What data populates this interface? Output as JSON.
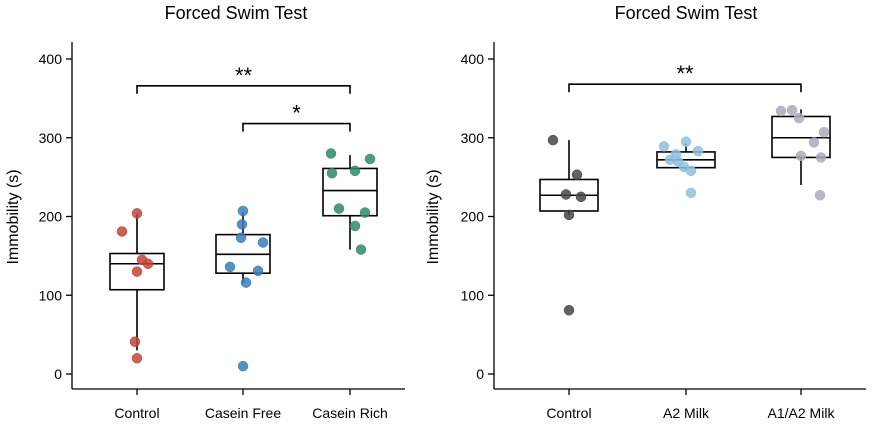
{
  "chart_data": [
    {
      "type": "box",
      "title": "Forced Swim Test",
      "xlabel": "",
      "ylabel": "Immobility (s)",
      "ylim": [
        -20,
        420
      ],
      "yticks": [
        0,
        100,
        200,
        300,
        400
      ],
      "grid": false,
      "categories": [
        "Control",
        "Casein Free",
        "Casein Rich"
      ],
      "colors": [
        "#c0453a",
        "#3a7cb8",
        "#2f8a70"
      ],
      "groups": [
        {
          "name": "Control",
          "q1": 107,
          "median": 140,
          "q3": 153,
          "whisker_low": 30,
          "whisker_high": 203,
          "points": [
            204,
            181,
            145,
            140,
            130,
            41,
            20
          ]
        },
        {
          "name": "Casein Free",
          "q1": 128,
          "median": 152,
          "q3": 177,
          "whisker_low": 115,
          "whisker_high": 205,
          "points": [
            207,
            190,
            173,
            167,
            136,
            131,
            116,
            10
          ]
        },
        {
          "name": "Casein Rich",
          "q1": 201,
          "median": 233,
          "q3": 261,
          "whisker_low": 158,
          "whisker_high": 278,
          "points": [
            280,
            273,
            258,
            255,
            210,
            205,
            188,
            158
          ]
        }
      ],
      "significance": [
        {
          "from": 0,
          "to": 2,
          "y": 366,
          "label": "**"
        },
        {
          "from": 1,
          "to": 2,
          "y": 318,
          "label": "*"
        }
      ]
    },
    {
      "type": "box",
      "title": "Forced Swim Test",
      "xlabel": "",
      "ylabel": "Immobility (s)",
      "ylim": [
        -20,
        420
      ],
      "yticks": [
        0,
        100,
        200,
        300,
        400
      ],
      "grid": false,
      "categories": [
        "Control",
        "A2 Milk",
        "A1/A2 Milk"
      ],
      "colors": [
        "#454545",
        "#8fbfdf",
        "#a9adb6"
      ],
      "groups": [
        {
          "name": "Control",
          "q1": 207,
          "median": 227,
          "q3": 247,
          "whisker_low": 202,
          "whisker_high": 297,
          "points": [
            297,
            253,
            228,
            225,
            202,
            81
          ]
        },
        {
          "name": "A2 Milk",
          "q1": 262,
          "median": 272,
          "q3": 282,
          "whisker_low": 258,
          "whisker_high": 293,
          "points": [
            295,
            289,
            283,
            279,
            272,
            270,
            263,
            258,
            230
          ]
        },
        {
          "name": "A1/A2 Milk",
          "q1": 275,
          "median": 300,
          "q3": 327,
          "whisker_low": 240,
          "whisker_high": 336,
          "points": [
            335,
            334,
            325,
            307,
            294,
            277,
            275,
            227
          ]
        }
      ],
      "significance": [
        {
          "from": 0,
          "to": 2,
          "y": 368,
          "label": "**"
        }
      ]
    }
  ]
}
